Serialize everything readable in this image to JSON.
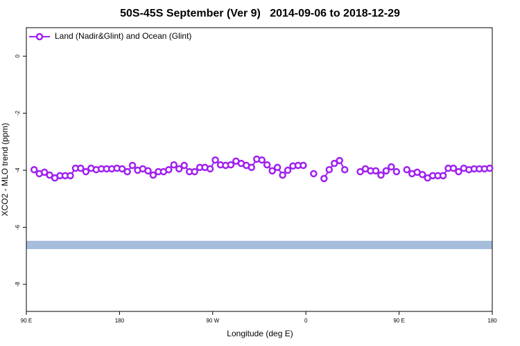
{
  "chart_data": {
    "type": "line",
    "title": "50S-45S September (Ver 9)   2014-09-06 to 2018-12-29",
    "xlabel": "Longitude (deg E)",
    "ylabel": "XCO2 - MLO trend (ppm)",
    "x": [
      97.5,
      102.5,
      107.5,
      112.5,
      117.5,
      122.5,
      127.5,
      132.5,
      137.5,
      142.5,
      147.5,
      152.5,
      157.5,
      162.5,
      167.5,
      172.5,
      177.5,
      182.5,
      187.5,
      192.5,
      197.5,
      202.5,
      207.5,
      212.5,
      217.5,
      222.5,
      227.5,
      232.5,
      237.5,
      242.5,
      247.5,
      252.5,
      257.5,
      262.5,
      267.5,
      272.5,
      277.5,
      282.5,
      287.5,
      292.5,
      297.5,
      302.5,
      307.5,
      312.5,
      317.5,
      322.5,
      327.5,
      332.5,
      337.5,
      342.5,
      347.5,
      352.5,
      357.5,
      362.5,
      367.5,
      372.5,
      377.5,
      382.5,
      387.5,
      392.5,
      397.5,
      402.5,
      407.5,
      412.5,
      417.5,
      422.5,
      427.5,
      432.5,
      437.5,
      442.5,
      447.5,
      452.5,
      457.5,
      462.5,
      467.5,
      472.5,
      477.5,
      482.5,
      487.5,
      492.5,
      497.5,
      502.5,
      507.5,
      512.5,
      517.5,
      522.5,
      527.5,
      532.5,
      537.5
    ],
    "series": [
      {
        "name": "Land (Nadir&Glint) and Ocean (Glint)",
        "color": "#a020f0",
        "values": [
          -3.98,
          -4.12,
          -4.07,
          -4.17,
          -4.27,
          -4.19,
          -4.19,
          -4.19,
          -3.93,
          -3.93,
          -4.05,
          -3.93,
          -3.98,
          -3.95,
          -3.95,
          -3.95,
          -3.93,
          -3.95,
          -4.05,
          -3.83,
          -4.0,
          -3.95,
          -4.02,
          -4.17,
          -4.05,
          -4.05,
          -3.98,
          -3.81,
          -3.95,
          -3.83,
          -4.05,
          -4.05,
          -3.9,
          -3.9,
          -3.95,
          -3.64,
          -3.81,
          -3.83,
          -3.81,
          -3.68,
          -3.76,
          -3.83,
          -3.9,
          -3.61,
          -3.64,
          -3.81,
          -4.02,
          -3.9,
          -4.17,
          -4.0,
          -3.85,
          -3.83,
          -3.83,
          null,
          -4.12,
          null,
          -4.29,
          -3.98,
          -3.76,
          -3.66,
          -3.98,
          null,
          null,
          -4.05,
          -3.95,
          -4.02,
          -4.02,
          -4.17,
          -4.02,
          -3.88,
          -4.05,
          null,
          -3.98,
          -4.12,
          -4.07,
          -4.15,
          -4.27,
          -4.19,
          -4.19,
          -4.19,
          -3.93,
          -3.93,
          -4.05,
          -3.93,
          -3.98,
          -3.95,
          -3.95,
          -3.95,
          -3.93
        ]
      }
    ],
    "xlim": [
      90,
      540
    ],
    "xticks": [
      {
        "value": 90,
        "label": "90 E"
      },
      180,
      {
        "value": 270,
        "label": "90 W"
      },
      {
        "value": 360,
        "label": "0"
      },
      {
        "value": 450,
        "label": "90 E"
      },
      {
        "value": 540,
        "label": "180"
      }
    ],
    "ylim": [
      -8.95,
      1.0
    ],
    "yticks": [
      0,
      -2,
      -4,
      -6,
      -8
    ],
    "legend": "upper left"
  }
}
